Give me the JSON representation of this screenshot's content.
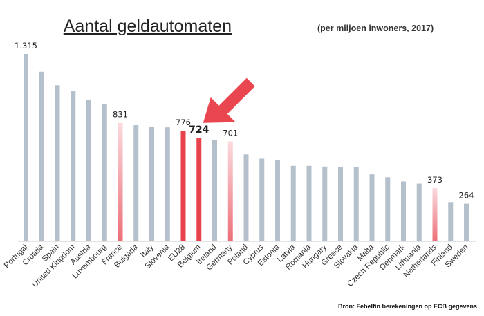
{
  "chart_data": {
    "type": "bar",
    "title": "Aantal geldautomaten",
    "subtitle": "(per miljoen inwoners, 2017)",
    "categories": [
      "Portugal",
      "Croatia",
      "Spain",
      "United Kingdom",
      "Austria",
      "Luxembourg",
      "France",
      "Bulgaria",
      "Italy",
      "Slovenia",
      "EU28",
      "Belgium",
      "Ireland",
      "Germany",
      "Poland",
      "Cyprus",
      "Estonia",
      "Latvia",
      "Romania",
      "Hungary",
      "Greece",
      "Slovakia",
      "Malta",
      "Czech Republic",
      "Denmark",
      "Lithuania",
      "Netherlands",
      "Finland",
      "Sweden"
    ],
    "values": [
      1315,
      1190,
      1095,
      1055,
      995,
      965,
      831,
      815,
      805,
      800,
      776,
      724,
      710,
      701,
      610,
      580,
      570,
      530,
      530,
      525,
      520,
      520,
      470,
      450,
      420,
      405,
      373,
      275,
      264
    ],
    "data_labels": {
      "Portugal": "1.315",
      "France": "831",
      "EU28": "776",
      "Belgium": "724",
      "Germany": "701",
      "Netherlands": "373",
      "Sweden": "264"
    },
    "highlight": {
      "strong": [
        "EU28",
        "Belgium"
      ],
      "light": [
        "France",
        "Germany",
        "Netherlands"
      ]
    },
    "colors": {
      "default": "#b4c0cc",
      "strong": "#e8434d",
      "light_top": "#fadadd",
      "light_bottom": "#ec6f78",
      "arrow": "#ea4650",
      "baseline": "#c9c9c9"
    },
    "ylim": [
      0,
      1400
    ],
    "xlabel": "",
    "ylabel": "",
    "grid": false,
    "legend": "none",
    "annotation": {
      "type": "arrow",
      "target": "Belgium"
    },
    "source": "Bron: Febelfin berekeningen op ECB gegevens"
  }
}
